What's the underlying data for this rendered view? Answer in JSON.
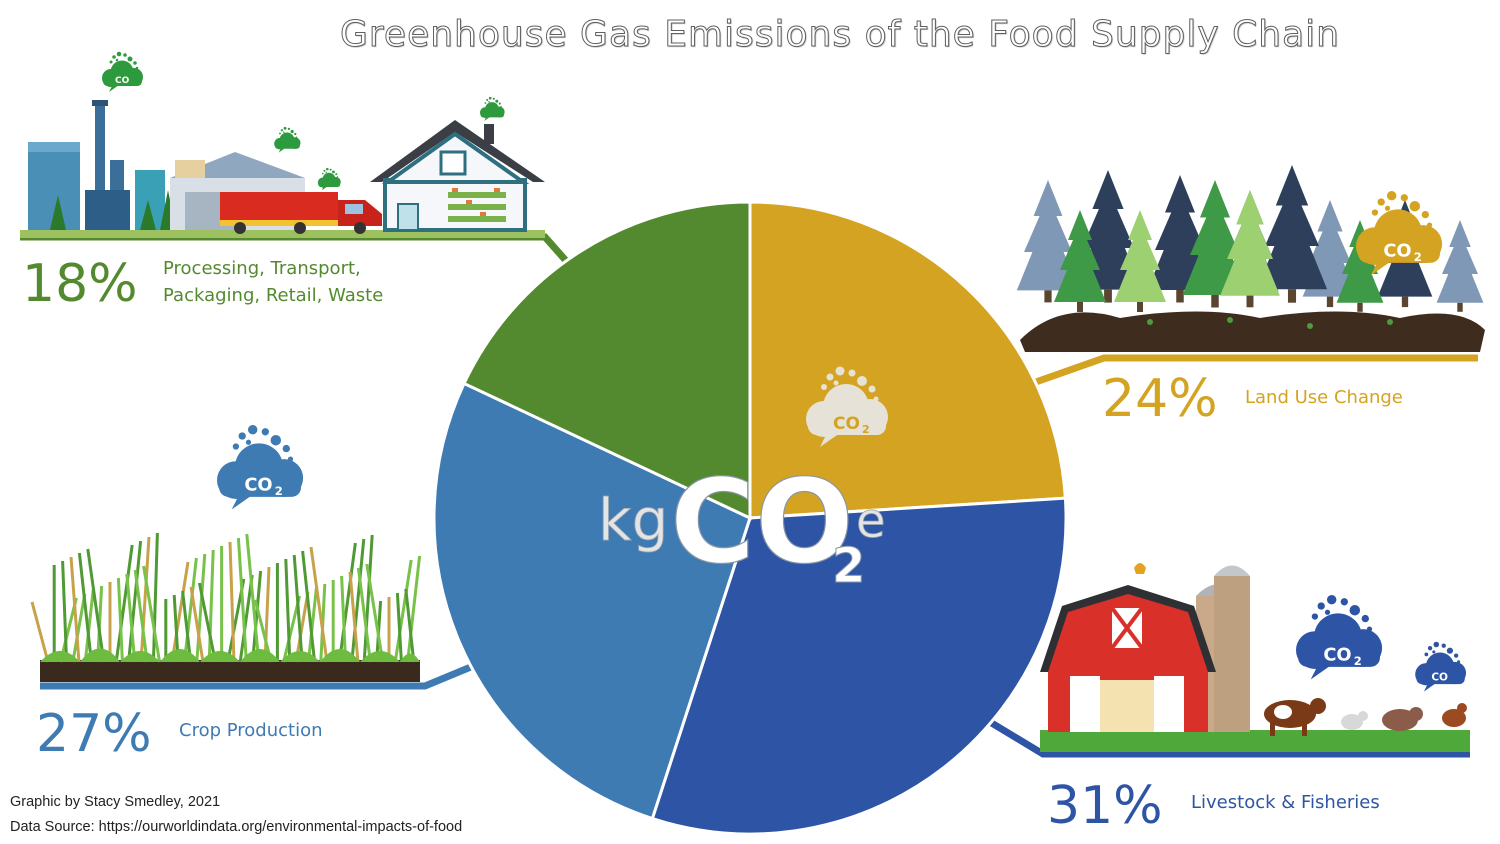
{
  "title": "Greenhouse Gas Emissions of the Food Supply Chain",
  "center_label": {
    "prefix": "kg",
    "formula": "CO",
    "subscript": "2",
    "suffix": "e"
  },
  "co2_badge": {
    "text": "CO",
    "sub": "2"
  },
  "colors": {
    "processing": "#548a2f",
    "land_use": "#d4a322",
    "livestock": "#2e55a5",
    "crop": "#3e7bb3"
  },
  "callouts": {
    "processing": {
      "percent": "18%",
      "label_line1": "Processing, Transport,",
      "label_line2": "Packaging, Retail, Waste"
    },
    "land_use": {
      "percent": "24%",
      "label": "Land Use Change"
    },
    "livestock": {
      "percent": "31%",
      "label": "Livestock & Fisheries"
    },
    "crop": {
      "percent": "27%",
      "label": "Crop Production"
    }
  },
  "credits": {
    "author": "Graphic by Stacy Smedley, 2021",
    "source": "Data Source: https://ourworldindata.org/environmental-impacts-of-food"
  },
  "chart_data": {
    "type": "pie",
    "title": "Greenhouse Gas Emissions of the Food Supply Chain",
    "unit": "kg CO2e",
    "start_angle_deg": 0,
    "direction": "clockwise",
    "slices": [
      {
        "name": "Land Use Change",
        "value": 24,
        "color": "#d4a322"
      },
      {
        "name": "Livestock & Fisheries",
        "value": 31,
        "color": "#2e55a5"
      },
      {
        "name": "Crop Production",
        "value": 27,
        "color": "#3e7bb3"
      },
      {
        "name": "Processing, Transport, Packaging, Retail, Waste",
        "value": 18,
        "color": "#548a2f"
      }
    ]
  }
}
